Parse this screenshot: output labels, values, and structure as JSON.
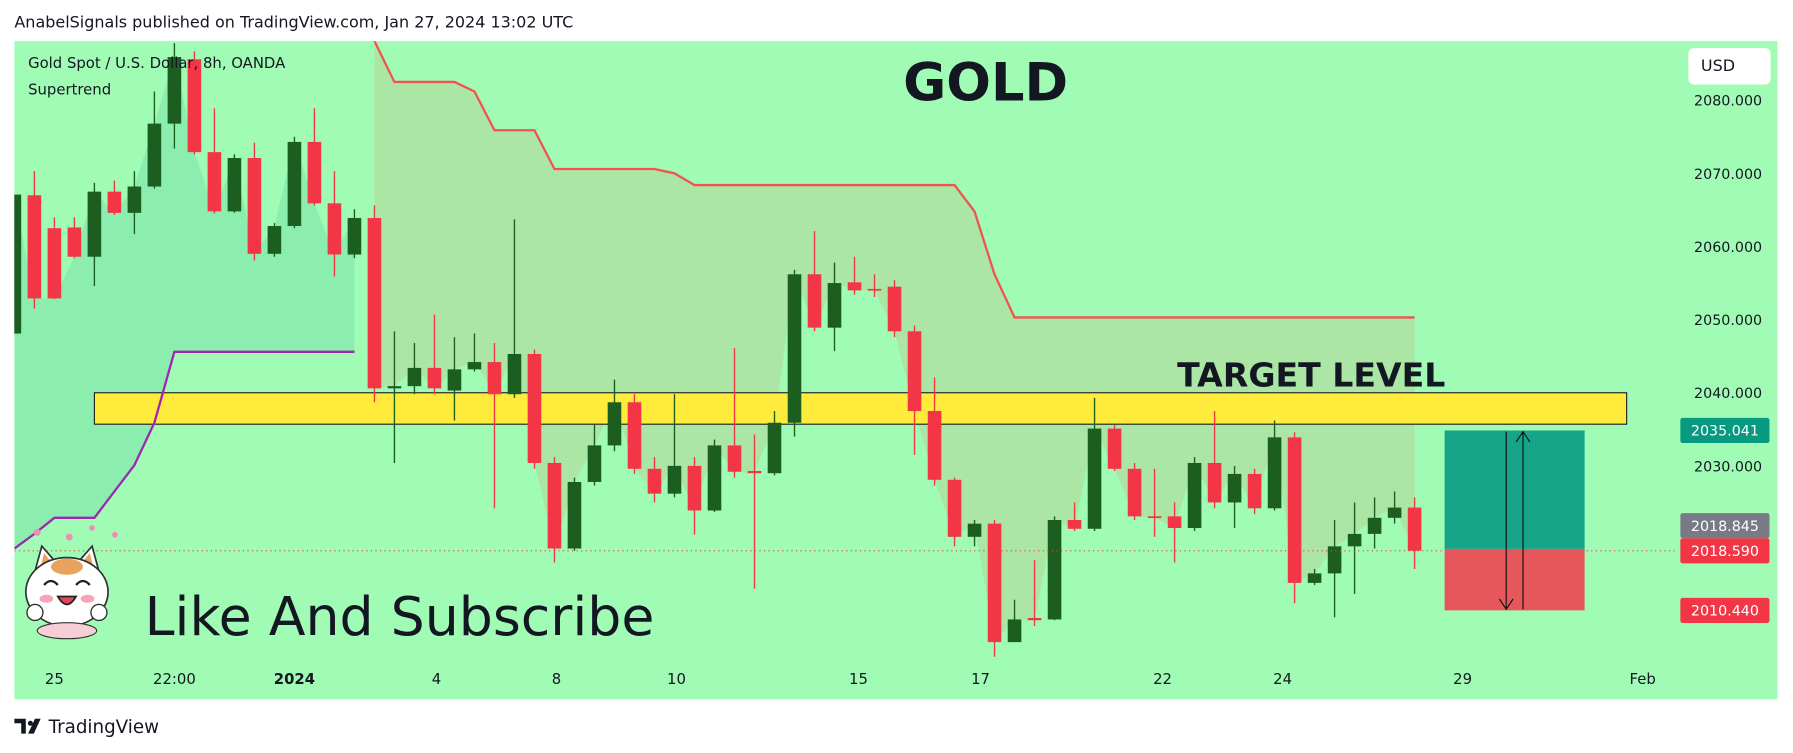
{
  "header": {
    "text": "AnabelSignals published on TradingView.com, Jan 27, 2024 13:02 UTC"
  },
  "footer": {
    "brand": "TradingView"
  },
  "chart_data": {
    "type": "candlestick",
    "title": "GOLD",
    "symbol": "Gold Spot / U.S. Dollar, 8h, OANDA",
    "currency": "USD",
    "background": "#a0fcb4",
    "up_color": "#1b5e20",
    "down_color": "#f23645",
    "open": [
      2048.3,
      2067.2,
      2062.7,
      2062.8,
      2058.8,
      2067.7,
      2064.8,
      2068.4,
      2077.0,
      2085.8,
      2073.1,
      2065.0,
      2072.3,
      2059.2,
      2063.0,
      2074.5,
      2066.1,
      2059.1,
      2064.1,
      2040.8,
      2041.1,
      2043.6,
      2040.5,
      2043.4,
      2044.4,
      2040.0,
      2045.5,
      2030.6,
      2018.9,
      2028.0,
      2033.0,
      2038.9,
      2029.8,
      2026.4,
      2030.2,
      2024.1,
      2033.0,
      2029.5,
      2029.2,
      2036.1,
      2056.4,
      2049.1,
      2055.3,
      2054.4,
      2054.7,
      2048.6,
      2037.7,
      2028.3,
      2020.5,
      2022.3,
      2006.1,
      2009.4,
      2009.2,
      2022.8,
      2021.6,
      2035.3,
      2029.8,
      2023.3,
      2023.3,
      2021.7,
      2030.6,
      2025.2,
      2029.1,
      2024.4,
      2034.1,
      2014.2,
      2015.5,
      2019.2,
      2020.9,
      2023.1,
      2024.5
    ],
    "high": [
      2067.3,
      2070.5,
      2064.2,
      2064.2,
      2068.9,
      2069.2,
      2070.5,
      2081.4,
      2088.0,
      2086.9,
      2079.1,
      2072.8,
      2074.4,
      2063.4,
      2075.2,
      2079.1,
      2070.5,
      2065.3,
      2065.8,
      2048.6,
      2047.0,
      2050.9,
      2047.8,
      2048.3,
      2047.0,
      2063.9,
      2046.1,
      2031.4,
      2028.6,
      2035.8,
      2042.0,
      2040.0,
      2031.4,
      2040.0,
      2031.4,
      2033.8,
      2046.3,
      2034.5,
      2037.7,
      2057.0,
      2062.3,
      2058.0,
      2058.8,
      2056.4,
      2055.6,
      2049.4,
      2042.3,
      2028.6,
      2022.8,
      2022.8,
      2011.9,
      2017.3,
      2023.3,
      2025.2,
      2039.5,
      2035.8,
      2030.6,
      2029.8,
      2025.2,
      2031.4,
      2037.7,
      2030.2,
      2029.8,
      2036.4,
      2034.8,
      2016.1,
      2022.8,
      2025.2,
      2025.9,
      2026.7,
      2025.9
    ],
    "low": [
      2048.3,
      2051.7,
      2053.0,
      2058.6,
      2054.8,
      2064.5,
      2061.9,
      2068.1,
      2073.6,
      2072.8,
      2064.7,
      2064.8,
      2058.3,
      2058.8,
      2062.7,
      2065.8,
      2056.1,
      2058.6,
      2038.9,
      2030.6,
      2040.0,
      2040.0,
      2036.4,
      2043.1,
      2024.4,
      2039.5,
      2029.8,
      2017.0,
      2018.6,
      2027.5,
      2032.2,
      2029.1,
      2025.2,
      2025.9,
      2020.8,
      2023.9,
      2028.6,
      2013.4,
      2028.9,
      2034.2,
      2048.6,
      2045.9,
      2053.6,
      2053.3,
      2047.8,
      2031.7,
      2027.5,
      2019.2,
      2019.2,
      2004.1,
      2006.1,
      2008.3,
      2009.1,
      2021.3,
      2021.3,
      2029.5,
      2022.8,
      2020.5,
      2017.0,
      2021.3,
      2024.4,
      2021.7,
      2023.6,
      2024.1,
      2011.4,
      2013.9,
      2009.5,
      2012.7,
      2018.9,
      2022.3,
      2016.1
    ],
    "close": [
      2067.3,
      2053.1,
      2053.1,
      2058.8,
      2067.7,
      2064.8,
      2068.4,
      2077.0,
      2086.1,
      2073.1,
      2065.0,
      2072.3,
      2059.2,
      2063.0,
      2074.5,
      2066.1,
      2059.1,
      2064.1,
      2040.8,
      2041.1,
      2043.6,
      2040.8,
      2043.4,
      2044.4,
      2040.0,
      2045.5,
      2030.6,
      2018.9,
      2028.0,
      2033.0,
      2038.9,
      2029.8,
      2026.4,
      2030.2,
      2024.1,
      2033.0,
      2029.4,
      2029.2,
      2036.1,
      2056.4,
      2049.1,
      2055.2,
      2054.2,
      2054.2,
      2048.6,
      2037.7,
      2028.3,
      2020.5,
      2022.3,
      2006.1,
      2009.2,
      2009.1,
      2022.8,
      2021.6,
      2035.3,
      2029.8,
      2023.3,
      2023.1,
      2021.7,
      2030.6,
      2025.2,
      2029.1,
      2024.4,
      2034.1,
      2014.2,
      2015.5,
      2019.2,
      2020.9,
      2023.1,
      2024.5,
      2018.6
    ],
    "supertrend": {
      "name": "Supertrend",
      "up": {
        "color": "#9c27b0",
        "fill": "rgba(0,150,136,0.13)",
        "values": [
          2018.9,
          2020.9,
          2023.1,
          2023.1,
          2023.1,
          2026.7,
          2030.3,
          2036.1,
          2045.8,
          2045.8,
          2045.8,
          2045.8,
          2045.8,
          2045.8,
          2045.8,
          2045.8,
          2045.8,
          2045.8,
          null,
          null,
          null,
          null,
          null,
          null,
          null,
          null,
          null,
          null,
          null,
          null,
          null,
          null,
          null,
          null,
          null,
          null,
          null,
          null,
          null,
          null,
          null,
          null,
          null,
          null,
          null,
          null,
          null,
          null,
          null,
          null,
          null,
          null,
          null,
          null,
          null,
          null,
          null,
          null,
          null,
          null,
          null,
          null,
          null,
          null,
          null,
          null,
          null,
          null,
          null,
          null,
          null
        ]
      },
      "down": {
        "color": "#f05350",
        "fill": "rgba(230,120,80,0.16)",
        "values": [
          null,
          null,
          null,
          null,
          null,
          null,
          null,
          null,
          null,
          null,
          null,
          null,
          null,
          null,
          null,
          null,
          null,
          null,
          2088.3,
          2082.7,
          2082.7,
          2082.7,
          2082.7,
          2081.4,
          2076.1,
          2076.1,
          2076.1,
          2070.8,
          2070.8,
          2070.8,
          2070.8,
          2070.8,
          2070.8,
          2070.2,
          2068.6,
          2068.6,
          2068.6,
          2068.6,
          2068.6,
          2068.6,
          2068.6,
          2068.6,
          2068.6,
          2068.6,
          2068.6,
          2068.6,
          2068.6,
          2068.6,
          2065.0,
          2056.4,
          2050.5,
          2050.5,
          2050.5,
          2050.5,
          2050.5,
          2050.5,
          2050.5,
          2050.5,
          2050.5,
          2050.5,
          2050.5,
          2050.5,
          2050.5,
          2050.5,
          2050.5,
          2050.5,
          2050.5,
          2050.5,
          2050.5,
          2050.5,
          2050.5
        ]
      }
    },
    "zone": {
      "top": 2040.2,
      "bottom": 2035.9,
      "from": 4,
      "to": 80.6,
      "color": "#ffeb3b"
    },
    "position": {
      "from": 71.5,
      "to": 78.5,
      "target": {
        "value": 2035.041,
        "label": "2035.041"
      },
      "entry": {
        "value": 2018.845,
        "label": "2018.845"
      },
      "stop": {
        "value": 2010.44,
        "label": "2010.440"
      },
      "profit_color": "#17a589",
      "loss_color": "#e5575a",
      "target_label_color": "#089981",
      "entry_label_color": "#787b86",
      "stop_label_color": "#f23645"
    },
    "last_price": {
      "value": 2018.59,
      "label": "2018.590",
      "color": "#f23645"
    },
    "annotations": [
      "TARGET LEVEL",
      "Like And Subscribe"
    ],
    "xlim": [
      0,
      83
    ],
    "ylim": [
      1998.44,
      2088.28
    ],
    "xticks": [
      {
        "value": 2,
        "label": "25"
      },
      {
        "value": 8,
        "label": "22:00"
      },
      {
        "value": 14,
        "label": "2024"
      },
      {
        "value": 21.1,
        "label": "4"
      },
      {
        "value": 27.1,
        "label": "8"
      },
      {
        "value": 33.1,
        "label": "10"
      },
      {
        "value": 42.2,
        "label": "15"
      },
      {
        "value": 48.3,
        "label": "17"
      },
      {
        "value": 57.4,
        "label": "22"
      },
      {
        "value": 63.4,
        "label": "24"
      },
      {
        "value": 72.4,
        "label": "29"
      },
      {
        "value": 81.4,
        "label": "Feb"
      }
    ],
    "yticks": [
      {
        "value": 2080,
        "label": "2080.000"
      },
      {
        "value": 2070,
        "label": "2070.000"
      },
      {
        "value": 2060,
        "label": "2060.000"
      },
      {
        "value": 2050,
        "label": "2050.000"
      },
      {
        "value": 2040,
        "label": "2040.000"
      },
      {
        "value": 2030,
        "label": "2030.000"
      }
    ]
  }
}
